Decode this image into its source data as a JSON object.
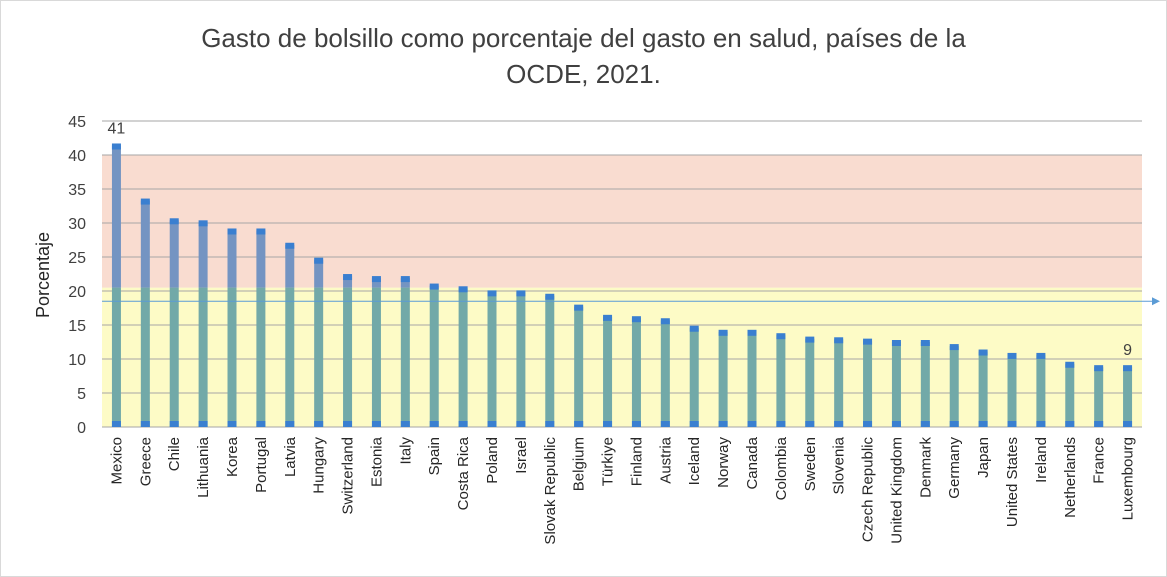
{
  "chart_data": {
    "type": "bar",
    "title_line1": "Gasto de bolsillo como porcentaje del gasto en salud, países de la",
    "title_line2": "OCDE, 2021.",
    "ylabel": "Porcentaje",
    "xlabel": "",
    "ylim": [
      0,
      45
    ],
    "yticks": [
      0,
      5,
      10,
      15,
      20,
      25,
      30,
      35,
      40,
      45
    ],
    "grid": true,
    "bands": [
      {
        "from": 0,
        "to": 20.5,
        "color": "#fdfbc6"
      },
      {
        "from": 20.5,
        "to": 40,
        "color": "#f9dcd0"
      }
    ],
    "reference_line": {
      "value": 18.5,
      "color": "#5b9bd5"
    },
    "categories": [
      "Mexico",
      "Greece",
      "Chile",
      "Lithuania",
      "Korea",
      "Portugal",
      "Latvia",
      "Hungary",
      "Switzerland",
      "Estonia",
      "Italy",
      "Spain",
      "Costa Rica",
      "Poland",
      "Israel",
      "Slovak Republic",
      "Belgium",
      "Türkiye",
      "Finland",
      "Austria",
      "Iceland",
      "Norway",
      "Canada",
      "Colombia",
      "Sweden",
      "Slovenia",
      "Czech Republic",
      "United Kingdom",
      "Denmark",
      "Germany",
      "Japan",
      "United States",
      "Ireland",
      "Netherlands",
      "France",
      "Luxembourg"
    ],
    "values": [
      41.4,
      33.3,
      30.4,
      30.1,
      28.9,
      28.9,
      26.8,
      24.6,
      22.2,
      21.9,
      21.9,
      20.8,
      20.4,
      19.8,
      19.8,
      19.3,
      17.7,
      16.2,
      16.0,
      15.7,
      14.6,
      14.0,
      14.0,
      13.5,
      13.0,
      12.9,
      12.7,
      12.5,
      12.5,
      11.9,
      11.1,
      10.6,
      10.6,
      9.3,
      8.8,
      8.8
    ],
    "data_labels": [
      {
        "index": 0,
        "text": "41"
      },
      {
        "index": 35,
        "text": "9"
      }
    ],
    "colors": {
      "bar_upper": "#7494c2",
      "bar_lower": "#72a9a8",
      "bar_cap": "#3a7fd0",
      "grid": "#a6a6a6"
    }
  }
}
